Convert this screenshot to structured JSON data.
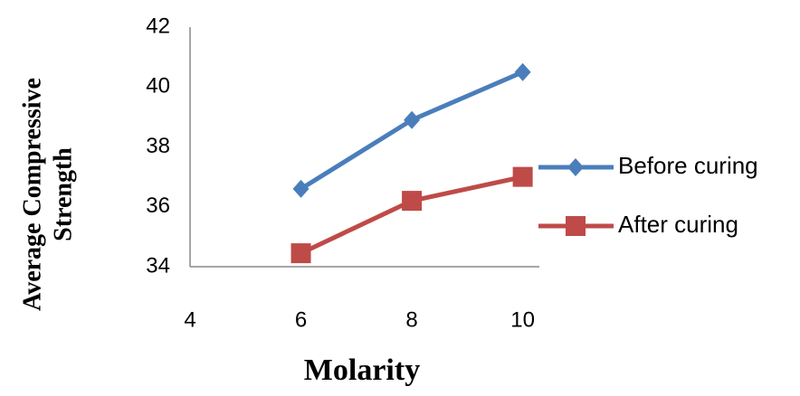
{
  "chart_data": {
    "type": "line",
    "x_label": "Molarity",
    "y_label": [
      "Average Compressive",
      "Strength"
    ],
    "xlim": [
      4,
      10.3
    ],
    "xticks": [
      4,
      6,
      8,
      10
    ],
    "ylim": [
      34,
      42
    ],
    "yticks": [
      34,
      36,
      38,
      40,
      42
    ],
    "grid": false,
    "legend": "right",
    "series": [
      {
        "name": "Before curing",
        "color": "#4a7ebb",
        "marker": "diamond",
        "x": [
          6,
          8,
          10
        ],
        "values": [
          36.6,
          38.9,
          40.5
        ]
      },
      {
        "name": "After curing",
        "color": "#be4b48",
        "marker": "square",
        "x": [
          6,
          8,
          10
        ],
        "values": [
          34.45,
          36.2,
          37.0
        ]
      }
    ]
  }
}
